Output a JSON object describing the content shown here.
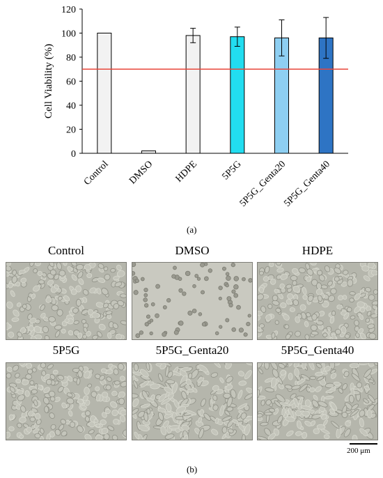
{
  "chart_data": {
    "type": "bar",
    "categories": [
      "Control",
      "DMSO",
      "HDPE",
      "5P5G",
      "5P5G_Genta20",
      "5P5G_Genta40"
    ],
    "values": [
      100,
      2,
      98,
      97,
      96,
      96
    ],
    "errors": [
      0,
      0,
      6,
      8,
      15,
      17
    ],
    "colors": [
      "#f2f2f2",
      "#f2f2f2",
      "#f2f2f2",
      "#22ddf0",
      "#8ecff2",
      "#2e74c4"
    ],
    "ylabel": "Cell Viability (%)",
    "xlabel": "",
    "ylim": [
      0,
      120
    ],
    "yticks": [
      0,
      20,
      40,
      60,
      80,
      100,
      120
    ],
    "threshold": 70,
    "threshold_color": "#e8463a",
    "grid": false
  },
  "panel_a_label": "(a)",
  "panel_b_label": "(b)",
  "micrographs": [
    {
      "title": "Control",
      "style": "dense"
    },
    {
      "title": "DMSO",
      "style": "sparse"
    },
    {
      "title": "HDPE",
      "style": "dense"
    },
    {
      "title": "5P5G",
      "style": "dense"
    },
    {
      "title": "5P5G_Genta20",
      "style": "elongated"
    },
    {
      "title": "5P5G_Genta40",
      "style": "elongated"
    }
  ],
  "scale_bar_label": "200 μm"
}
